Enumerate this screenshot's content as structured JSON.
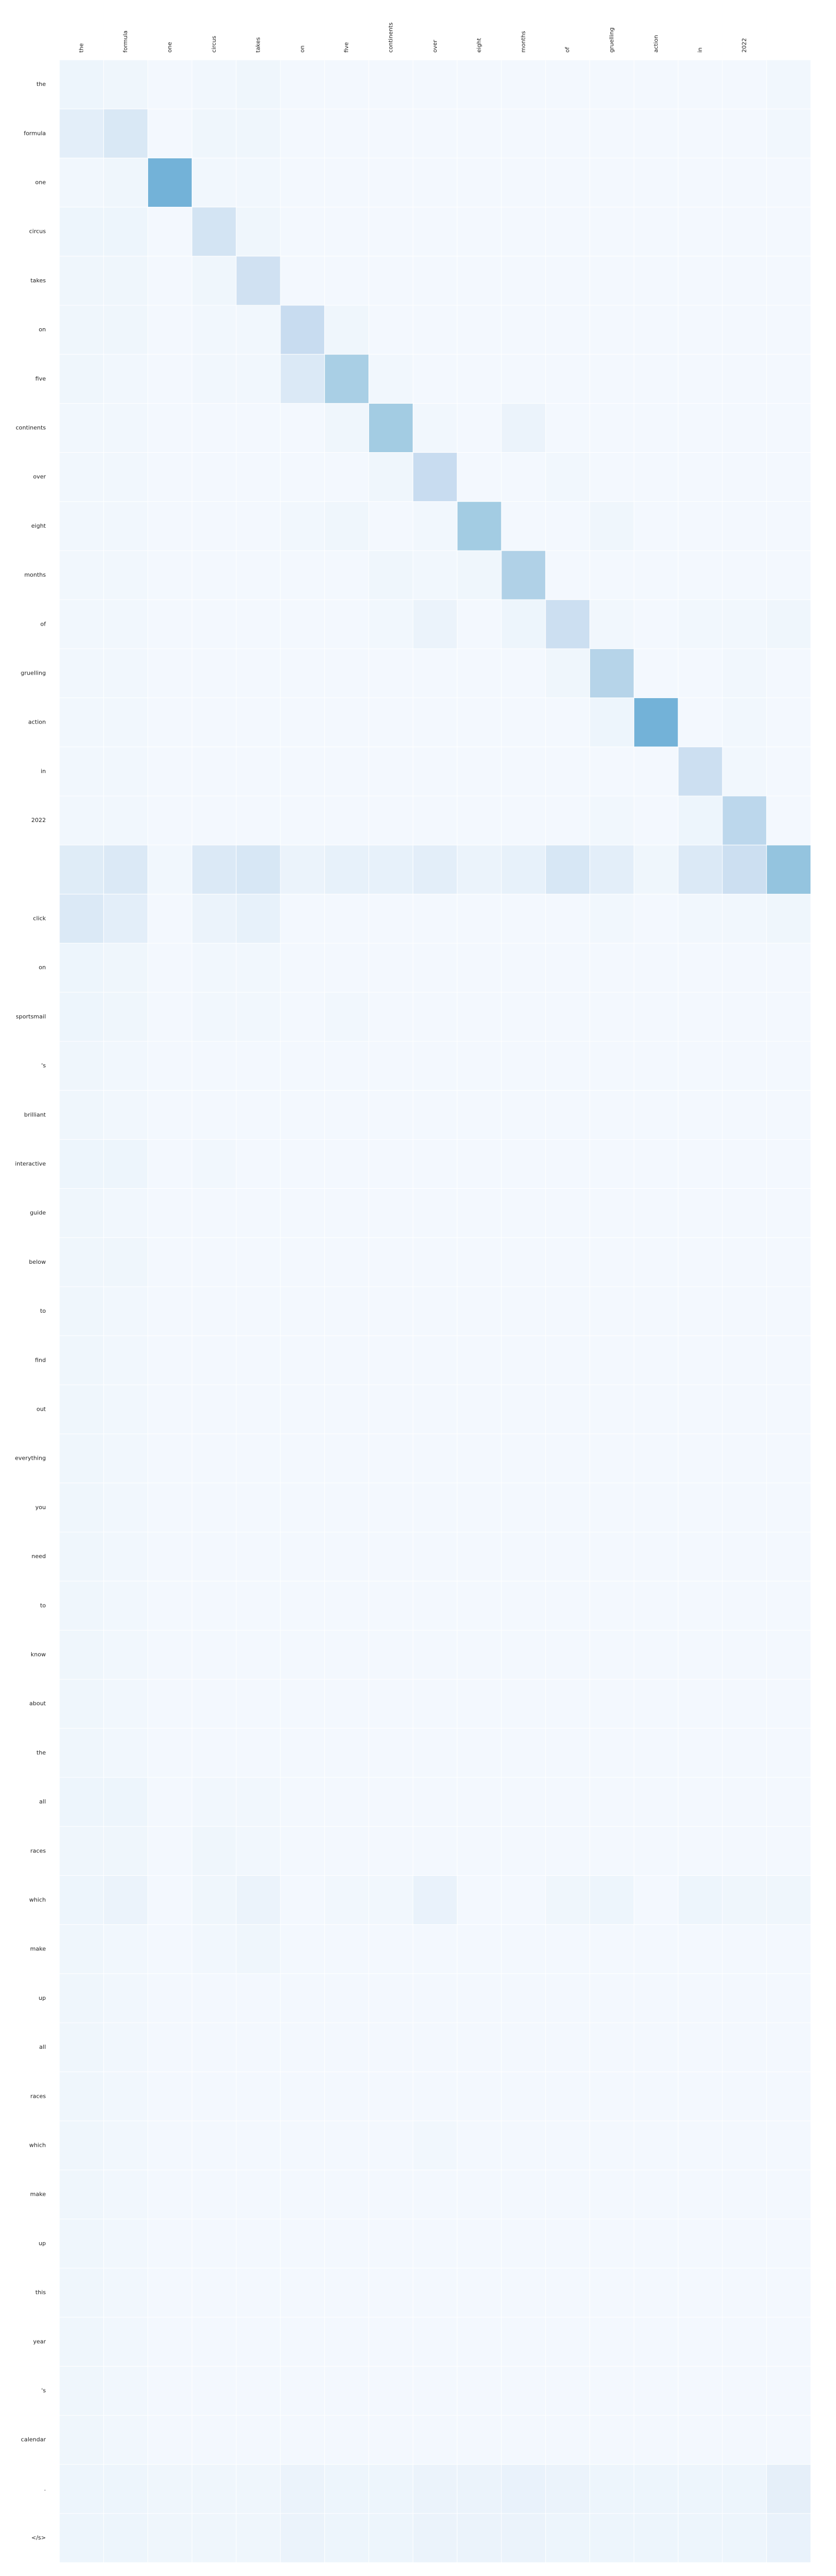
{
  "chart_data": {
    "type": "heatmap",
    "title": "",
    "xlabel": "",
    "ylabel": "",
    "colormap": "Blues",
    "colors": {
      "low": "#f7fbff",
      "high": "#08306b",
      "cell_border": "#ffffff"
    },
    "grid": false,
    "legend": "none",
    "x_tokens": [
      "the",
      "formula",
      "one",
      "circus",
      "takes",
      "on",
      "five",
      "continents",
      "over",
      "eight",
      "months",
      "of",
      "gruelling",
      "action",
      "in",
      "2022",
      ""
    ],
    "y_tokens": [
      "the",
      "formula",
      "one",
      "circus",
      "takes",
      "on",
      "five",
      "continents",
      "over",
      "eight",
      "months",
      "of",
      "gruelling",
      "action",
      "in",
      "2022",
      "",
      "click",
      "on",
      "sportsmail",
      "'s",
      "brilliant",
      "interactive",
      "guide",
      "below",
      "to",
      "find",
      "out",
      "everything",
      "you",
      "need",
      "to",
      "know",
      "about",
      "the",
      "all",
      "races",
      "which",
      "make",
      "up",
      "all",
      "races",
      "which",
      "make",
      "up",
      "this",
      "year",
      "'s",
      "calendar",
      ".",
      "</s>"
    ],
    "values": [
      [
        0.05,
        0.04,
        0.02,
        0.03,
        0.04,
        0.02,
        0.02,
        0.02,
        0.02,
        0.02,
        0.02,
        0.02,
        0.02,
        0.02,
        0.02,
        0.02,
        0.03
      ],
      [
        0.1,
        0.15,
        0.02,
        0.04,
        0.04,
        0.02,
        0.02,
        0.02,
        0.02,
        0.02,
        0.02,
        0.02,
        0.02,
        0.02,
        0.02,
        0.02,
        0.03
      ],
      [
        0.03,
        0.04,
        0.48,
        0.03,
        0.03,
        0.02,
        0.02,
        0.02,
        0.02,
        0.02,
        0.02,
        0.02,
        0.02,
        0.02,
        0.02,
        0.02,
        0.02
      ],
      [
        0.05,
        0.05,
        0.02,
        0.18,
        0.04,
        0.02,
        0.02,
        0.02,
        0.02,
        0.02,
        0.02,
        0.02,
        0.02,
        0.02,
        0.02,
        0.02,
        0.02
      ],
      [
        0.04,
        0.04,
        0.02,
        0.04,
        0.2,
        0.02,
        0.02,
        0.02,
        0.02,
        0.02,
        0.02,
        0.02,
        0.02,
        0.02,
        0.02,
        0.02,
        0.02
      ],
      [
        0.04,
        0.04,
        0.02,
        0.03,
        0.03,
        0.24,
        0.04,
        0.02,
        0.02,
        0.02,
        0.02,
        0.02,
        0.02,
        0.02,
        0.02,
        0.02,
        0.02
      ],
      [
        0.04,
        0.03,
        0.02,
        0.03,
        0.03,
        0.14,
        0.34,
        0.03,
        0.02,
        0.02,
        0.02,
        0.02,
        0.02,
        0.02,
        0.02,
        0.02,
        0.02
      ],
      [
        0.03,
        0.03,
        0.02,
        0.02,
        0.02,
        0.02,
        0.04,
        0.36,
        0.03,
        0.02,
        0.06,
        0.02,
        0.02,
        0.02,
        0.02,
        0.02,
        0.02
      ],
      [
        0.03,
        0.03,
        0.02,
        0.02,
        0.02,
        0.02,
        0.02,
        0.04,
        0.24,
        0.02,
        0.02,
        0.03,
        0.02,
        0.02,
        0.02,
        0.02,
        0.02
      ],
      [
        0.03,
        0.03,
        0.02,
        0.02,
        0.02,
        0.03,
        0.04,
        0.02,
        0.03,
        0.36,
        0.02,
        0.02,
        0.04,
        0.02,
        0.02,
        0.02,
        0.02
      ],
      [
        0.03,
        0.03,
        0.02,
        0.02,
        0.02,
        0.02,
        0.02,
        0.04,
        0.03,
        0.04,
        0.32,
        0.02,
        0.02,
        0.02,
        0.02,
        0.02,
        0.02
      ],
      [
        0.03,
        0.03,
        0.02,
        0.02,
        0.02,
        0.02,
        0.02,
        0.03,
        0.06,
        0.02,
        0.05,
        0.22,
        0.03,
        0.02,
        0.03,
        0.03,
        0.04
      ],
      [
        0.03,
        0.03,
        0.02,
        0.02,
        0.02,
        0.02,
        0.02,
        0.02,
        0.02,
        0.02,
        0.02,
        0.04,
        0.3,
        0.02,
        0.02,
        0.03,
        0.02
      ],
      [
        0.03,
        0.03,
        0.02,
        0.02,
        0.02,
        0.02,
        0.02,
        0.02,
        0.02,
        0.02,
        0.02,
        0.02,
        0.05,
        0.48,
        0.02,
        0.03,
        0.02
      ],
      [
        0.03,
        0.03,
        0.02,
        0.02,
        0.02,
        0.02,
        0.02,
        0.02,
        0.02,
        0.02,
        0.02,
        0.02,
        0.02,
        0.02,
        0.22,
        0.03,
        0.02
      ],
      [
        0.03,
        0.03,
        0.02,
        0.02,
        0.02,
        0.02,
        0.02,
        0.02,
        0.02,
        0.02,
        0.02,
        0.02,
        0.03,
        0.02,
        0.05,
        0.28,
        0.02
      ],
      [
        0.12,
        0.14,
        0.03,
        0.14,
        0.16,
        0.06,
        0.08,
        0.08,
        0.1,
        0.06,
        0.08,
        0.16,
        0.1,
        0.04,
        0.14,
        0.22,
        0.4
      ],
      [
        0.14,
        0.1,
        0.02,
        0.06,
        0.08,
        0.02,
        0.02,
        0.02,
        0.02,
        0.02,
        0.02,
        0.02,
        0.03,
        0.02,
        0.03,
        0.03,
        0.04
      ],
      [
        0.05,
        0.04,
        0.02,
        0.03,
        0.03,
        0.02,
        0.02,
        0.02,
        0.02,
        0.02,
        0.02,
        0.02,
        0.02,
        0.02,
        0.02,
        0.02,
        0.02
      ],
      [
        0.05,
        0.04,
        0.02,
        0.03,
        0.03,
        0.02,
        0.03,
        0.02,
        0.02,
        0.02,
        0.02,
        0.02,
        0.02,
        0.02,
        0.02,
        0.02,
        0.02
      ],
      [
        0.04,
        0.03,
        0.02,
        0.02,
        0.02,
        0.02,
        0.02,
        0.02,
        0.02,
        0.02,
        0.02,
        0.02,
        0.02,
        0.02,
        0.02,
        0.02,
        0.02
      ],
      [
        0.04,
        0.03,
        0.02,
        0.02,
        0.02,
        0.02,
        0.02,
        0.02,
        0.02,
        0.02,
        0.02,
        0.02,
        0.02,
        0.02,
        0.02,
        0.02,
        0.02
      ],
      [
        0.05,
        0.05,
        0.02,
        0.03,
        0.02,
        0.02,
        0.02,
        0.02,
        0.02,
        0.02,
        0.02,
        0.02,
        0.02,
        0.02,
        0.02,
        0.02,
        0.02
      ],
      [
        0.04,
        0.03,
        0.02,
        0.02,
        0.02,
        0.02,
        0.02,
        0.02,
        0.02,
        0.02,
        0.02,
        0.02,
        0.02,
        0.02,
        0.02,
        0.02,
        0.02
      ],
      [
        0.04,
        0.04,
        0.02,
        0.02,
        0.02,
        0.02,
        0.02,
        0.02,
        0.02,
        0.02,
        0.02,
        0.02,
        0.02,
        0.02,
        0.02,
        0.02,
        0.02
      ],
      [
        0.04,
        0.03,
        0.02,
        0.02,
        0.02,
        0.02,
        0.02,
        0.02,
        0.02,
        0.02,
        0.02,
        0.02,
        0.02,
        0.02,
        0.02,
        0.02,
        0.02
      ],
      [
        0.04,
        0.03,
        0.02,
        0.02,
        0.02,
        0.02,
        0.02,
        0.02,
        0.02,
        0.02,
        0.02,
        0.02,
        0.02,
        0.02,
        0.02,
        0.02,
        0.02
      ],
      [
        0.04,
        0.03,
        0.02,
        0.02,
        0.02,
        0.02,
        0.02,
        0.02,
        0.02,
        0.02,
        0.02,
        0.02,
        0.02,
        0.02,
        0.02,
        0.02,
        0.02
      ],
      [
        0.04,
        0.03,
        0.02,
        0.02,
        0.02,
        0.02,
        0.02,
        0.02,
        0.02,
        0.02,
        0.02,
        0.02,
        0.02,
        0.02,
        0.02,
        0.02,
        0.02
      ],
      [
        0.04,
        0.03,
        0.02,
        0.02,
        0.02,
        0.02,
        0.02,
        0.02,
        0.02,
        0.02,
        0.02,
        0.02,
        0.02,
        0.02,
        0.02,
        0.02,
        0.02
      ],
      [
        0.04,
        0.03,
        0.02,
        0.02,
        0.02,
        0.02,
        0.02,
        0.02,
        0.02,
        0.02,
        0.02,
        0.02,
        0.02,
        0.02,
        0.02,
        0.02,
        0.02
      ],
      [
        0.04,
        0.03,
        0.02,
        0.02,
        0.02,
        0.02,
        0.02,
        0.02,
        0.02,
        0.02,
        0.02,
        0.02,
        0.02,
        0.02,
        0.02,
        0.02,
        0.02
      ],
      [
        0.04,
        0.03,
        0.02,
        0.02,
        0.02,
        0.02,
        0.02,
        0.02,
        0.02,
        0.02,
        0.02,
        0.02,
        0.02,
        0.02,
        0.02,
        0.02,
        0.02
      ],
      [
        0.04,
        0.03,
        0.02,
        0.02,
        0.02,
        0.02,
        0.02,
        0.02,
        0.02,
        0.02,
        0.02,
        0.02,
        0.02,
        0.02,
        0.02,
        0.02,
        0.02
      ],
      [
        0.04,
        0.03,
        0.02,
        0.02,
        0.02,
        0.02,
        0.02,
        0.02,
        0.02,
        0.02,
        0.02,
        0.02,
        0.02,
        0.02,
        0.02,
        0.02,
        0.02
      ],
      [
        0.05,
        0.05,
        0.02,
        0.03,
        0.03,
        0.02,
        0.02,
        0.02,
        0.02,
        0.02,
        0.02,
        0.02,
        0.02,
        0.02,
        0.02,
        0.02,
        0.02
      ],
      [
        0.04,
        0.04,
        0.02,
        0.04,
        0.03,
        0.02,
        0.02,
        0.02,
        0.02,
        0.02,
        0.02,
        0.02,
        0.02,
        0.02,
        0.02,
        0.02,
        0.02
      ],
      [
        0.05,
        0.06,
        0.02,
        0.04,
        0.06,
        0.02,
        0.03,
        0.03,
        0.07,
        0.02,
        0.02,
        0.04,
        0.05,
        0.02,
        0.05,
        0.04,
        0.04
      ],
      [
        0.04,
        0.03,
        0.02,
        0.03,
        0.04,
        0.02,
        0.02,
        0.02,
        0.02,
        0.02,
        0.02,
        0.02,
        0.02,
        0.02,
        0.02,
        0.02,
        0.02
      ],
      [
        0.04,
        0.03,
        0.02,
        0.02,
        0.02,
        0.02,
        0.02,
        0.02,
        0.02,
        0.02,
        0.02,
        0.02,
        0.02,
        0.02,
        0.02,
        0.02,
        0.02
      ],
      [
        0.04,
        0.03,
        0.02,
        0.02,
        0.02,
        0.02,
        0.02,
        0.02,
        0.02,
        0.02,
        0.02,
        0.02,
        0.02,
        0.02,
        0.02,
        0.02,
        0.02
      ],
      [
        0.04,
        0.03,
        0.02,
        0.02,
        0.02,
        0.02,
        0.02,
        0.02,
        0.02,
        0.02,
        0.02,
        0.02,
        0.02,
        0.02,
        0.02,
        0.02,
        0.02
      ],
      [
        0.04,
        0.03,
        0.02,
        0.02,
        0.02,
        0.02,
        0.02,
        0.02,
        0.03,
        0.02,
        0.02,
        0.02,
        0.02,
        0.02,
        0.02,
        0.02,
        0.02
      ],
      [
        0.04,
        0.03,
        0.02,
        0.02,
        0.02,
        0.02,
        0.02,
        0.02,
        0.02,
        0.02,
        0.02,
        0.02,
        0.02,
        0.02,
        0.02,
        0.02,
        0.02
      ],
      [
        0.04,
        0.03,
        0.02,
        0.02,
        0.02,
        0.02,
        0.02,
        0.02,
        0.02,
        0.02,
        0.02,
        0.02,
        0.02,
        0.02,
        0.02,
        0.02,
        0.02
      ],
      [
        0.04,
        0.03,
        0.02,
        0.02,
        0.02,
        0.02,
        0.02,
        0.02,
        0.02,
        0.02,
        0.02,
        0.02,
        0.02,
        0.02,
        0.02,
        0.02,
        0.02
      ],
      [
        0.04,
        0.03,
        0.02,
        0.02,
        0.02,
        0.02,
        0.02,
        0.02,
        0.02,
        0.02,
        0.02,
        0.02,
        0.02,
        0.02,
        0.02,
        0.02,
        0.02
      ],
      [
        0.04,
        0.03,
        0.02,
        0.02,
        0.02,
        0.02,
        0.02,
        0.02,
        0.02,
        0.02,
        0.02,
        0.02,
        0.02,
        0.02,
        0.02,
        0.02,
        0.02
      ],
      [
        0.04,
        0.03,
        0.02,
        0.02,
        0.02,
        0.02,
        0.02,
        0.02,
        0.02,
        0.02,
        0.02,
        0.02,
        0.02,
        0.02,
        0.02,
        0.02,
        0.02
      ],
      [
        0.05,
        0.05,
        0.04,
        0.04,
        0.04,
        0.06,
        0.05,
        0.05,
        0.06,
        0.06,
        0.07,
        0.06,
        0.05,
        0.05,
        0.05,
        0.05,
        0.09
      ],
      [
        0.05,
        0.05,
        0.04,
        0.04,
        0.04,
        0.06,
        0.05,
        0.05,
        0.06,
        0.06,
        0.06,
        0.05,
        0.05,
        0.05,
        0.05,
        0.05,
        0.07
      ]
    ]
  }
}
